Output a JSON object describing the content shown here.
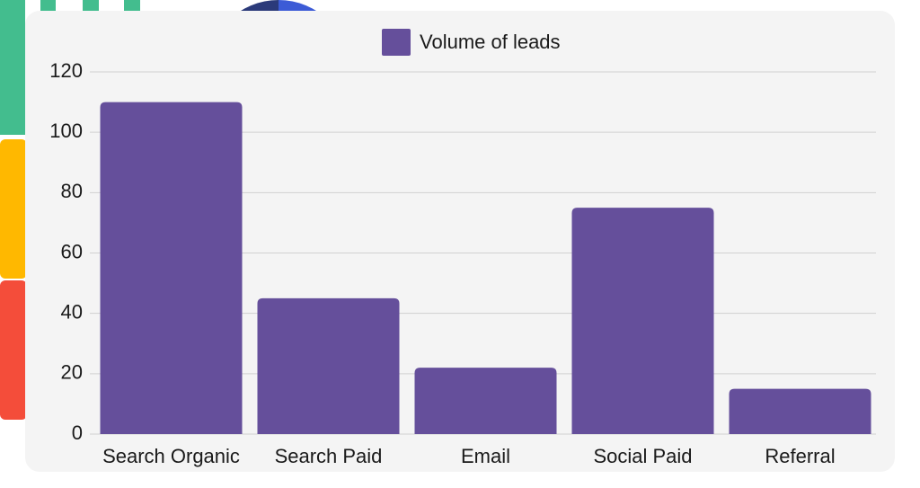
{
  "chart_data": {
    "type": "bar",
    "categories": [
      "Search Organic",
      "Search Paid",
      "Email",
      "Social Paid",
      "Referral"
    ],
    "series": [
      {
        "name": "Volume of leads",
        "color": "#654f9b",
        "values": [
          110,
          45,
          22,
          75,
          15
        ]
      }
    ],
    "ylim": [
      0,
      120
    ],
    "yticks": [
      0,
      20,
      40,
      60,
      80,
      100,
      120
    ],
    "grid": true,
    "legend": "top"
  }
}
